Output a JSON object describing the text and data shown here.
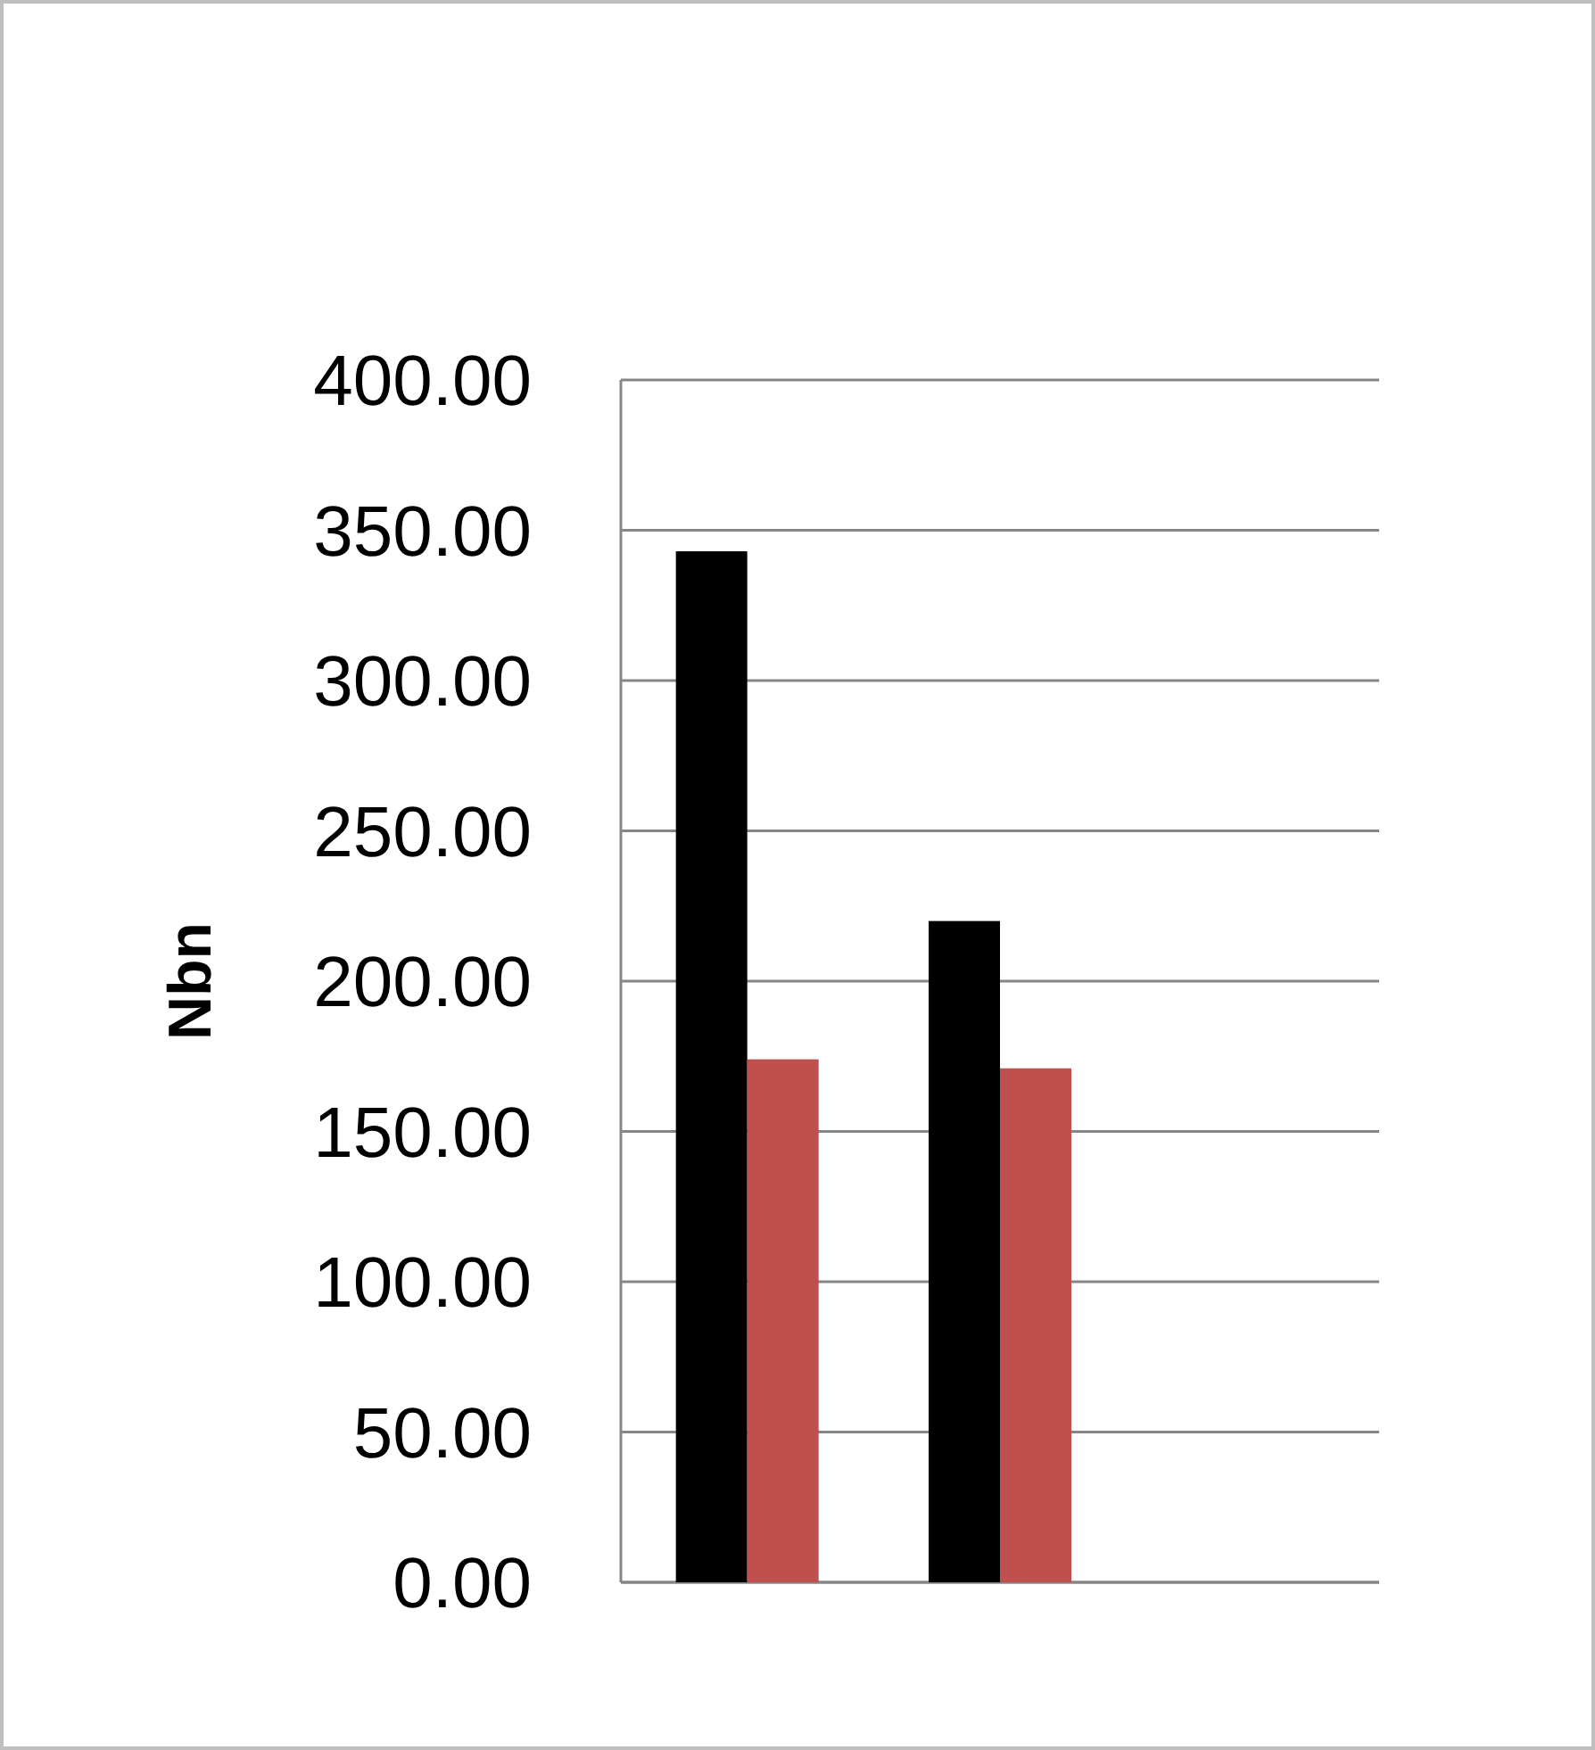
{
  "chart_data": {
    "type": "bar",
    "ylabel": "Nbn",
    "categories": [
      null,
      null,
      null
    ],
    "series": [
      {
        "color": "#000000",
        "values": [
          343,
          220,
          null
        ]
      },
      {
        "color": "#c0504d",
        "values": [
          174,
          171,
          null
        ]
      }
    ],
    "ylim": [
      0,
      400
    ],
    "yticks": [
      {
        "value": 0,
        "label": "0.00"
      },
      {
        "value": 50,
        "label": "50.00"
      },
      {
        "value": 100,
        "label": "100.00"
      },
      {
        "value": 150,
        "label": "150.00"
      },
      {
        "value": 200,
        "label": "200.00"
      },
      {
        "value": 250,
        "label": "250.00"
      },
      {
        "value": 300,
        "label": "300.00"
      },
      {
        "value": 350,
        "label": "350.00"
      },
      {
        "value": 400,
        "label": "400.00"
      }
    ],
    "grid": "y"
  }
}
